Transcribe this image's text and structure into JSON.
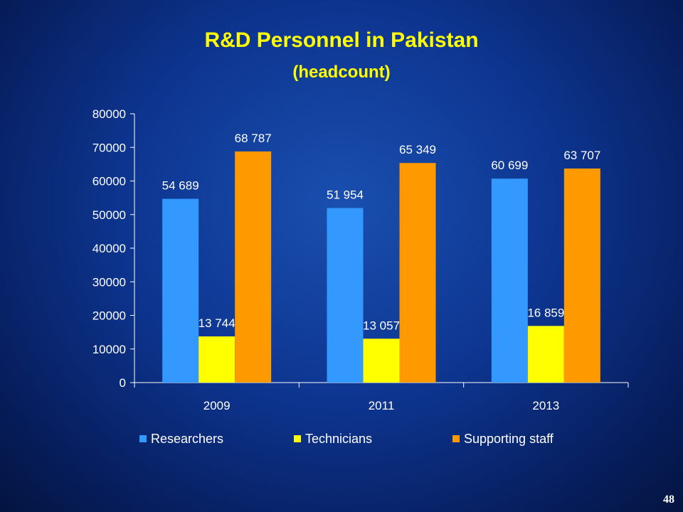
{
  "slide": {
    "title": "R&D Personnel in Pakistan",
    "subtitle": "(headcount)",
    "page_number": "48"
  },
  "colors": {
    "title": "#ffff00",
    "text": "#ffffff",
    "axis": "#ffffff"
  },
  "chart_data": {
    "type": "bar",
    "categories": [
      "2009",
      "2011",
      "2013"
    ],
    "series": [
      {
        "name": "Researchers",
        "color": "#3399ff",
        "values": [
          54689,
          51954,
          60699
        ],
        "labels": [
          "54 689",
          "51 954",
          "60 699"
        ]
      },
      {
        "name": "Technicians",
        "color": "#ffff00",
        "values": [
          13744,
          13057,
          16859
        ],
        "labels": [
          "13 744",
          "13 057",
          "16 859"
        ]
      },
      {
        "name": "Supporting staff",
        "color": "#ff9900",
        "values": [
          68787,
          65349,
          63707
        ],
        "labels": [
          "68 787",
          "65 349",
          "63 707"
        ]
      }
    ],
    "ylim": [
      0,
      80000
    ],
    "yticks": [
      "0",
      "10000",
      "20000",
      "30000",
      "40000",
      "50000",
      "60000",
      "70000",
      "80000"
    ],
    "grid": false,
    "legend": "bottom"
  }
}
